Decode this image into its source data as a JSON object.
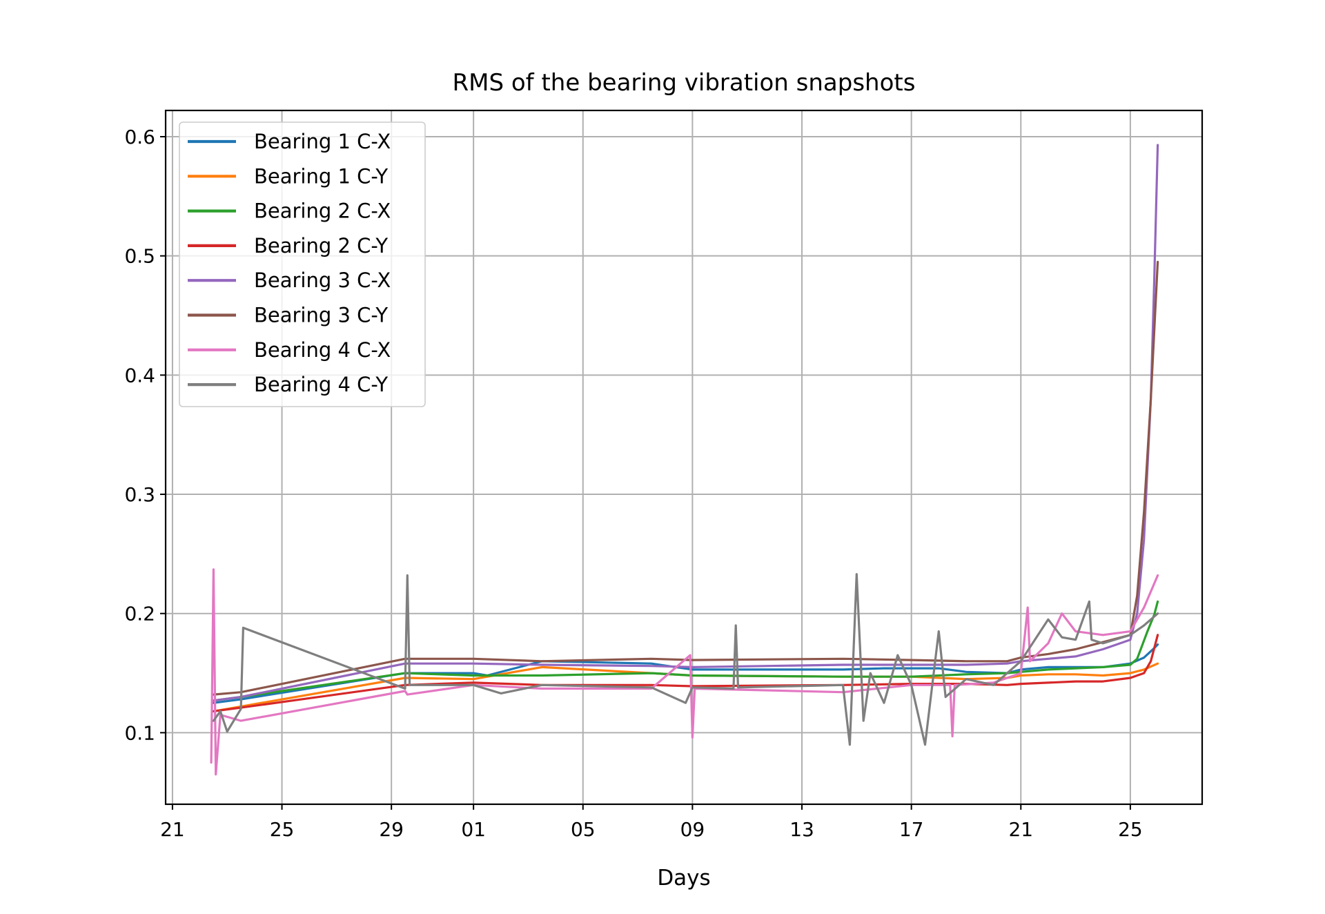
{
  "chart_data": {
    "type": "line",
    "title": "RMS of the bearing vibration snapshots",
    "xlabel": "Days",
    "ylabel": "",
    "x_axis_kind": "date",
    "xlim": [
      "2003-10-20T18:00",
      "2003-11-27T15:00"
    ],
    "ylim": [
      0.04,
      0.622
    ],
    "x_ticks": [
      {
        "date": "2003-10-21",
        "label": "21"
      },
      {
        "date": "2003-10-25",
        "label": "25"
      },
      {
        "date": "2003-10-29",
        "label": "29"
      },
      {
        "date": "2003-11-01",
        "label": "01"
      },
      {
        "date": "2003-11-05",
        "label": "05"
      },
      {
        "date": "2003-11-09",
        "label": "09"
      },
      {
        "date": "2003-11-13",
        "label": "13"
      },
      {
        "date": "2003-11-17",
        "label": "17"
      },
      {
        "date": "2003-11-21",
        "label": "21"
      },
      {
        "date": "2003-11-25",
        "label": "25"
      }
    ],
    "y_ticks": [
      0.1,
      0.2,
      0.3,
      0.4,
      0.5,
      0.6
    ],
    "grid": true,
    "legend_position": "top-left",
    "series": [
      {
        "name": "Bearing 1 C-X",
        "color": "#1f77b4",
        "points": [
          [
            "2003-10-22T12:00",
            0.125
          ],
          [
            "2003-10-23T12:00",
            0.128
          ],
          [
            "2003-10-29T12:00",
            0.15
          ],
          [
            "2003-11-01T00:00",
            0.15
          ],
          [
            "2003-11-01T12:00",
            0.148
          ],
          [
            "2003-11-03T12:00",
            0.16
          ],
          [
            "2003-11-07T12:00",
            0.158
          ],
          [
            "2003-11-09T00:00",
            0.153
          ],
          [
            "2003-11-10T12:00",
            0.153
          ],
          [
            "2003-11-14T12:00",
            0.153
          ],
          [
            "2003-11-16T00:00",
            0.154
          ],
          [
            "2003-11-18T00:00",
            0.154
          ],
          [
            "2003-11-19T00:00",
            0.151
          ],
          [
            "2003-11-20T12:00",
            0.15
          ],
          [
            "2003-11-21T00:00",
            0.153
          ],
          [
            "2003-11-22T00:00",
            0.155
          ],
          [
            "2003-11-23T00:00",
            0.155
          ],
          [
            "2003-11-24T00:00",
            0.155
          ],
          [
            "2003-11-25T00:00",
            0.158
          ],
          [
            "2003-11-25T12:00",
            0.163
          ],
          [
            "2003-11-25T21:00",
            0.171
          ],
          [
            "2003-11-26T00:00",
            0.174
          ]
        ]
      },
      {
        "name": "Bearing 1 C-Y",
        "color": "#ff7f0e",
        "points": [
          [
            "2003-10-22T12:00",
            0.118
          ],
          [
            "2003-10-23T12:00",
            0.122
          ],
          [
            "2003-10-29T12:00",
            0.146
          ],
          [
            "2003-11-01T00:00",
            0.145
          ],
          [
            "2003-11-03T12:00",
            0.155
          ],
          [
            "2003-11-07T12:00",
            0.15
          ],
          [
            "2003-11-09T00:00",
            0.148
          ],
          [
            "2003-11-14T12:00",
            0.147
          ],
          [
            "2003-11-17T00:00",
            0.147
          ],
          [
            "2003-11-19T00:00",
            0.145
          ],
          [
            "2003-11-20T12:00",
            0.146
          ],
          [
            "2003-11-21T00:00",
            0.148
          ],
          [
            "2003-11-22T00:00",
            0.149
          ],
          [
            "2003-11-23T00:00",
            0.149
          ],
          [
            "2003-11-24T00:00",
            0.148
          ],
          [
            "2003-11-25T00:00",
            0.15
          ],
          [
            "2003-11-25T12:00",
            0.153
          ],
          [
            "2003-11-26T00:00",
            0.158
          ]
        ]
      },
      {
        "name": "Bearing 2 C-X",
        "color": "#2ca02c",
        "points": [
          [
            "2003-10-22T12:00",
            0.127
          ],
          [
            "2003-10-23T12:00",
            0.13
          ],
          [
            "2003-10-29T12:00",
            0.15
          ],
          [
            "2003-11-01T00:00",
            0.148
          ],
          [
            "2003-11-03T12:00",
            0.148
          ],
          [
            "2003-11-07T12:00",
            0.15
          ],
          [
            "2003-11-09T00:00",
            0.148
          ],
          [
            "2003-11-14T12:00",
            0.147
          ],
          [
            "2003-11-17T00:00",
            0.147
          ],
          [
            "2003-11-19T00:00",
            0.149
          ],
          [
            "2003-11-20T12:00",
            0.15
          ],
          [
            "2003-11-21T00:00",
            0.151
          ],
          [
            "2003-11-22T00:00",
            0.153
          ],
          [
            "2003-11-23T00:00",
            0.154
          ],
          [
            "2003-11-24T00:00",
            0.155
          ],
          [
            "2003-11-25T00:00",
            0.157
          ],
          [
            "2003-11-25T06:00",
            0.162
          ],
          [
            "2003-11-25T15:00",
            0.185
          ],
          [
            "2003-11-25T21:00",
            0.199
          ],
          [
            "2003-11-26T00:00",
            0.21
          ]
        ]
      },
      {
        "name": "Bearing 2 C-Y",
        "color": "#d62728",
        "points": [
          [
            "2003-10-22T12:00",
            0.118
          ],
          [
            "2003-10-23T12:00",
            0.121
          ],
          [
            "2003-10-29T12:00",
            0.14
          ],
          [
            "2003-11-01T00:00",
            0.142
          ],
          [
            "2003-11-03T12:00",
            0.14
          ],
          [
            "2003-11-07T12:00",
            0.14
          ],
          [
            "2003-11-09T00:00",
            0.139
          ],
          [
            "2003-11-14T12:00",
            0.14
          ],
          [
            "2003-11-17T00:00",
            0.141
          ],
          [
            "2003-11-19T00:00",
            0.141
          ],
          [
            "2003-11-20T12:00",
            0.14
          ],
          [
            "2003-11-21T00:00",
            0.141
          ],
          [
            "2003-11-22T00:00",
            0.142
          ],
          [
            "2003-11-23T00:00",
            0.143
          ],
          [
            "2003-11-24T00:00",
            0.143
          ],
          [
            "2003-11-25T00:00",
            0.146
          ],
          [
            "2003-11-25T12:00",
            0.15
          ],
          [
            "2003-11-25T18:00",
            0.16
          ],
          [
            "2003-11-26T00:00",
            0.182
          ]
        ]
      },
      {
        "name": "Bearing 3 C-X",
        "color": "#9467bd",
        "points": [
          [
            "2003-10-22T12:00",
            0.127
          ],
          [
            "2003-10-23T12:00",
            0.13
          ],
          [
            "2003-10-29T12:00",
            0.158
          ],
          [
            "2003-11-01T00:00",
            0.158
          ],
          [
            "2003-11-03T12:00",
            0.157
          ],
          [
            "2003-11-07T12:00",
            0.156
          ],
          [
            "2003-11-09T00:00",
            0.155
          ],
          [
            "2003-11-14T12:00",
            0.157
          ],
          [
            "2003-11-17T00:00",
            0.157
          ],
          [
            "2003-11-19T00:00",
            0.157
          ],
          [
            "2003-11-20T12:00",
            0.158
          ],
          [
            "2003-11-21T00:00",
            0.16
          ],
          [
            "2003-11-22T00:00",
            0.162
          ],
          [
            "2003-11-23T00:00",
            0.164
          ],
          [
            "2003-11-24T00:00",
            0.17
          ],
          [
            "2003-11-25T00:00",
            0.178
          ],
          [
            "2003-11-25T06:00",
            0.2
          ],
          [
            "2003-11-25T12:00",
            0.262
          ],
          [
            "2003-11-25T18:00",
            0.38
          ],
          [
            "2003-11-25T21:00",
            0.48
          ],
          [
            "2003-11-26T00:00",
            0.593
          ]
        ]
      },
      {
        "name": "Bearing 3 C-Y",
        "color": "#8c564b",
        "points": [
          [
            "2003-10-22T12:00",
            0.132
          ],
          [
            "2003-10-23T12:00",
            0.134
          ],
          [
            "2003-10-29T12:00",
            0.162
          ],
          [
            "2003-11-01T00:00",
            0.162
          ],
          [
            "2003-11-03T12:00",
            0.16
          ],
          [
            "2003-11-07T12:00",
            0.162
          ],
          [
            "2003-11-09T00:00",
            0.161
          ],
          [
            "2003-11-14T12:00",
            0.162
          ],
          [
            "2003-11-17T00:00",
            0.161
          ],
          [
            "2003-11-19T00:00",
            0.16
          ],
          [
            "2003-11-20T12:00",
            0.16
          ],
          [
            "2003-11-21T00:00",
            0.163
          ],
          [
            "2003-11-22T00:00",
            0.166
          ],
          [
            "2003-11-23T00:00",
            0.17
          ],
          [
            "2003-11-24T00:00",
            0.176
          ],
          [
            "2003-11-25T00:00",
            0.182
          ],
          [
            "2003-11-25T06:00",
            0.215
          ],
          [
            "2003-11-25T12:00",
            0.285
          ],
          [
            "2003-11-25T18:00",
            0.38
          ],
          [
            "2003-11-26T00:00",
            0.495
          ]
        ]
      },
      {
        "name": "Bearing 4 C-X",
        "color": "#e377c2",
        "points": [
          [
            "2003-10-22T10:00",
            0.075
          ],
          [
            "2003-10-22T12:00",
            0.237
          ],
          [
            "2003-10-22T14:00",
            0.065
          ],
          [
            "2003-10-22T18:00",
            0.115
          ],
          [
            "2003-10-23T12:00",
            0.11
          ],
          [
            "2003-10-29T12:00",
            0.135
          ],
          [
            "2003-10-29T14:00",
            0.132
          ],
          [
            "2003-11-01T00:00",
            0.14
          ],
          [
            "2003-11-03T12:00",
            0.137
          ],
          [
            "2003-11-07T12:00",
            0.137
          ],
          [
            "2003-11-08T22:00",
            0.165
          ],
          [
            "2003-11-09T00:00",
            0.096
          ],
          [
            "2003-11-09T02:00",
            0.137
          ],
          [
            "2003-11-14T12:00",
            0.134
          ],
          [
            "2003-11-17T00:00",
            0.14
          ],
          [
            "2003-11-18T10:00",
            0.14
          ],
          [
            "2003-11-18T12:00",
            0.097
          ],
          [
            "2003-11-18T14:00",
            0.14
          ],
          [
            "2003-11-20T00:00",
            0.142
          ],
          [
            "2003-11-21T00:00",
            0.15
          ],
          [
            "2003-11-21T06:00",
            0.205
          ],
          [
            "2003-11-21T08:00",
            0.16
          ],
          [
            "2003-11-22T00:00",
            0.175
          ],
          [
            "2003-11-22T12:00",
            0.2
          ],
          [
            "2003-11-23T00:00",
            0.185
          ],
          [
            "2003-11-24T00:00",
            0.182
          ],
          [
            "2003-11-25T00:00",
            0.185
          ],
          [
            "2003-11-25T12:00",
            0.205
          ],
          [
            "2003-11-26T00:00",
            0.232
          ]
        ]
      },
      {
        "name": "Bearing 4 C-Y",
        "color": "#7f7f7f",
        "points": [
          [
            "2003-10-22T12:00",
            0.11
          ],
          [
            "2003-10-22T18:00",
            0.118
          ],
          [
            "2003-10-23T00:00",
            0.101
          ],
          [
            "2003-10-23T12:00",
            0.12
          ],
          [
            "2003-10-23T14:00",
            0.188
          ],
          [
            "2003-10-29T12:00",
            0.137
          ],
          [
            "2003-10-29T14:00",
            0.232
          ],
          [
            "2003-10-29T16:00",
            0.14
          ],
          [
            "2003-11-01T00:00",
            0.14
          ],
          [
            "2003-11-02T00:00",
            0.133
          ],
          [
            "2003-11-03T12:00",
            0.14
          ],
          [
            "2003-11-07T12:00",
            0.138
          ],
          [
            "2003-11-08T18:00",
            0.125
          ],
          [
            "2003-11-09T00:00",
            0.138
          ],
          [
            "2003-11-10T12:00",
            0.137
          ],
          [
            "2003-11-10T14:00",
            0.19
          ],
          [
            "2003-11-10T16:00",
            0.138
          ],
          [
            "2003-11-14T12:00",
            0.14
          ],
          [
            "2003-11-14T18:00",
            0.09
          ],
          [
            "2003-11-15T00:00",
            0.233
          ],
          [
            "2003-11-15T06:00",
            0.11
          ],
          [
            "2003-11-15T12:00",
            0.15
          ],
          [
            "2003-11-16T00:00",
            0.125
          ],
          [
            "2003-11-16T12:00",
            0.165
          ],
          [
            "2003-11-17T00:00",
            0.14
          ],
          [
            "2003-11-17T12:00",
            0.09
          ],
          [
            "2003-11-18T00:00",
            0.185
          ],
          [
            "2003-11-18T06:00",
            0.13
          ],
          [
            "2003-11-19T00:00",
            0.145
          ],
          [
            "2003-11-20T00:00",
            0.14
          ],
          [
            "2003-11-21T00:00",
            0.16
          ],
          [
            "2003-11-22T00:00",
            0.195
          ],
          [
            "2003-11-22T12:00",
            0.18
          ],
          [
            "2003-11-23T00:00",
            0.178
          ],
          [
            "2003-11-23T12:00",
            0.21
          ],
          [
            "2003-11-23T14:00",
            0.178
          ],
          [
            "2003-11-24T00:00",
            0.175
          ],
          [
            "2003-11-25T00:00",
            0.182
          ],
          [
            "2003-11-25T12:00",
            0.19
          ],
          [
            "2003-11-26T00:00",
            0.2
          ]
        ]
      }
    ]
  }
}
